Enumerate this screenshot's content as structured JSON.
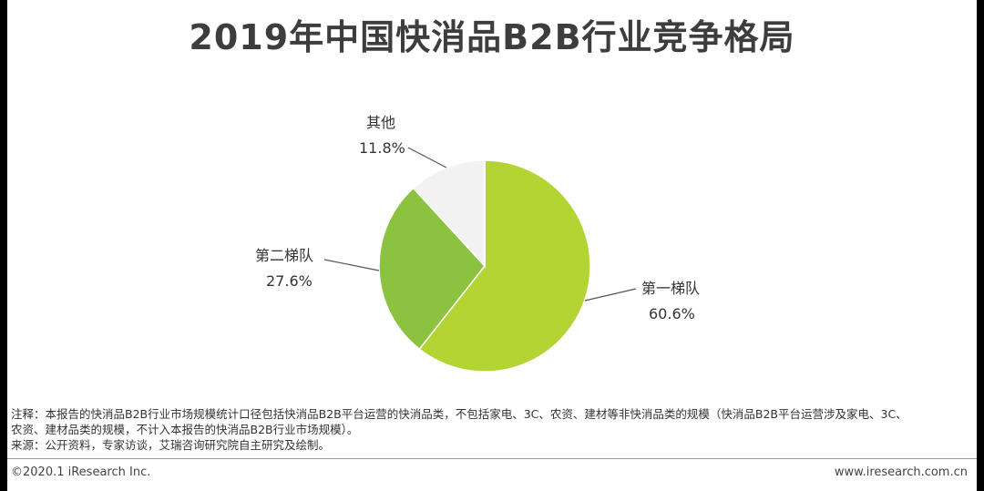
{
  "title": "2019年中国快消品B2B行业竞争格局",
  "chart_data": {
    "type": "pie",
    "slices": [
      {
        "name": "第一梯队",
        "value": 60.6,
        "label": "60.6%",
        "color": "#b4d433"
      },
      {
        "name": "第二梯队",
        "value": 27.6,
        "label": "27.6%",
        "color": "#8bc340"
      },
      {
        "name": "其他",
        "value": 11.8,
        "label": "11.8%",
        "color": "#f2f2f2"
      }
    ]
  },
  "notes": {
    "line1": "注释：本报告的快消品B2B行业市场规模统计口径包括快消品B2B平台运营的快消品类，不包括家电、3C、农资、建材等非快消品类的规模（快消品B2B平台运营涉及家电、3C、",
    "line2": "农资、建材品类的规模，不计入本报告的快消品B2B行业市场规模）。",
    "line3": "来源：公开资料，专家访谈，艾瑞咨询研究院自主研究及绘制。"
  },
  "footer": {
    "copyright": "©2020.1 iResearch Inc.",
    "website": "www.iresearch.com.cn"
  }
}
